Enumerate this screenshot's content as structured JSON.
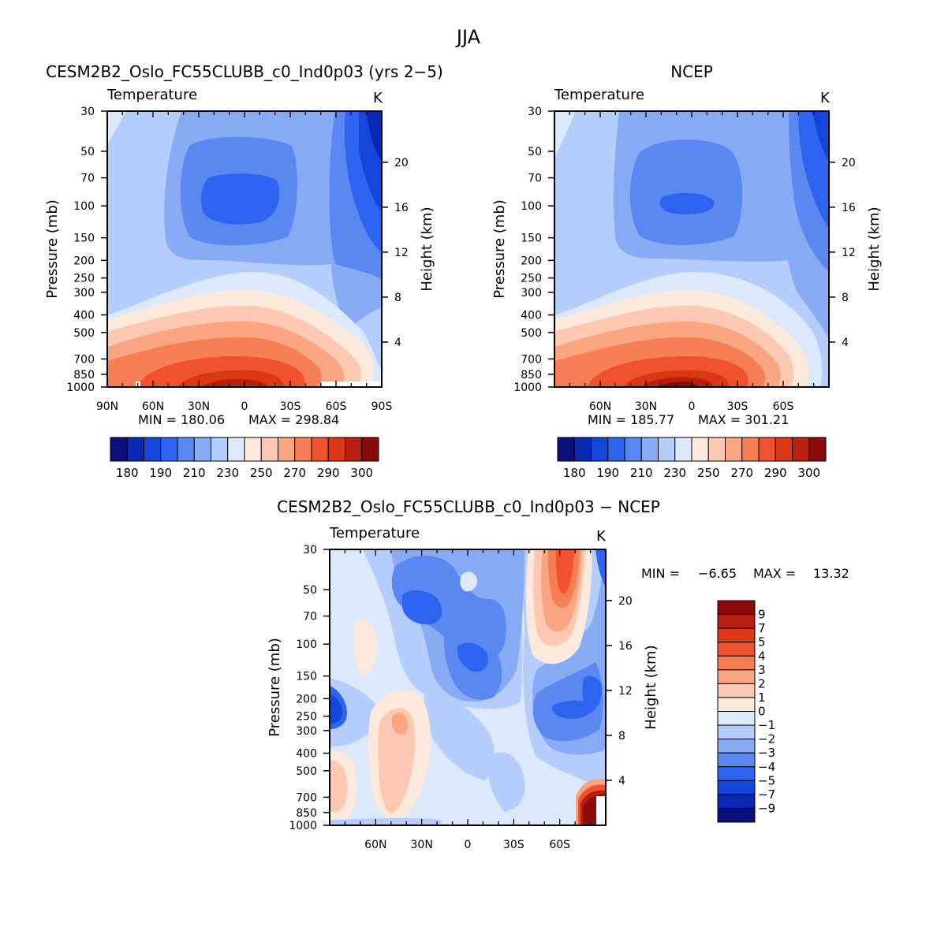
{
  "figure": {
    "title": "JJA"
  },
  "chart_data": [
    {
      "type": "heatmap",
      "panel": "model",
      "title": "CESM2B2_Oslo_FC55CLUBB_c0_Ind0p03 (yrs 2−5)",
      "variable_label": "Temperature",
      "units": "K",
      "ylabel": "Pressure (mb)",
      "y2label": "Height (km)",
      "y_ticks": [
        30,
        50,
        70,
        100,
        150,
        200,
        250,
        300,
        400,
        500,
        700,
        850,
        1000
      ],
      "y_tick_labels": [
        "30",
        "50",
        "70",
        "100",
        "150",
        "200",
        "250",
        "300",
        "400",
        "500",
        "700",
        "850",
        "1000"
      ],
      "x_ticks": [
        90,
        60,
        30,
        0,
        -30,
        -60,
        -90
      ],
      "x_tick_labels": [
        "90N",
        "60N",
        "30N",
        "0",
        "30S",
        "60S",
        "90S"
      ],
      "height_ticks_km": [
        20,
        16,
        12,
        8,
        4
      ],
      "height_tick_labels": [
        "20",
        "16",
        "12",
        "8",
        "4"
      ],
      "xlim": [
        90,
        -90
      ],
      "ylim": [
        1000,
        30
      ],
      "min_label": "MIN = 180.06",
      "max_label": "MAX = 298.84",
      "min": 180.06,
      "max": 298.84
    },
    {
      "type": "heatmap",
      "panel": "obs",
      "title": "NCEP",
      "variable_label": "Temperature",
      "units": "K",
      "ylabel": "Pressure (mb)",
      "y2label": "Height (km)",
      "y_ticks": [
        30,
        50,
        70,
        100,
        150,
        200,
        250,
        300,
        400,
        500,
        700,
        850,
        1000
      ],
      "y_tick_labels": [
        "30",
        "50",
        "70",
        "100",
        "150",
        "200",
        "250",
        "300",
        "400",
        "500",
        "700",
        "850",
        "1000"
      ],
      "x_ticks": [
        60,
        30,
        0,
        -30,
        -60
      ],
      "x_tick_labels": [
        "60N",
        "30N",
        "0",
        "30S",
        "60S"
      ],
      "height_ticks_km": [
        20,
        16,
        12,
        8,
        4
      ],
      "height_tick_labels": [
        "20",
        "16",
        "12",
        "8",
        "4"
      ],
      "xlim": [
        90,
        -90
      ],
      "ylim": [
        1000,
        30
      ],
      "min_label": "MIN = 185.77",
      "max_label": "MAX = 301.21",
      "min": 185.77,
      "max": 301.21
    },
    {
      "type": "heatmap",
      "panel": "difference",
      "title": "CESM2B2_Oslo_FC55CLUBB_c0_Ind0p03 − NCEP",
      "variable_label": "Temperature",
      "units": "K",
      "ylabel": "Pressure (mb)",
      "y2label": "Height (km)",
      "y_ticks": [
        30,
        50,
        70,
        100,
        150,
        200,
        250,
        300,
        400,
        500,
        700,
        850,
        1000
      ],
      "y_tick_labels": [
        "30",
        "50",
        "70",
        "100",
        "150",
        "200",
        "250",
        "300",
        "400",
        "500",
        "700",
        "850",
        "1000"
      ],
      "x_ticks": [
        60,
        30,
        0,
        -30,
        -60
      ],
      "x_tick_labels": [
        "60N",
        "30N",
        "0",
        "30S",
        "60S"
      ],
      "height_ticks_km": [
        20,
        16,
        12,
        8,
        4
      ],
      "height_tick_labels": [
        "20",
        "16",
        "12",
        "8",
        "4"
      ],
      "xlim": [
        90,
        -90
      ],
      "ylim": [
        1000,
        30
      ],
      "min_label": "MIN =",
      "min_value": "−6.65",
      "max_label": "MAX =",
      "max_value": "13.32",
      "min": -6.65,
      "max": 13.32
    }
  ],
  "colorbar_abs": {
    "labels": [
      "180",
      "190",
      "210",
      "230",
      "250",
      "270",
      "290",
      "300"
    ],
    "colors": [
      "#0a0f7a",
      "#0a28b4",
      "#1446dc",
      "#2d64f0",
      "#5a87f0",
      "#87aaf5",
      "#b4cdfa",
      "#dce8fc",
      "#fde8dc",
      "#fbc9b1",
      "#f9a582",
      "#f77d55",
      "#f0522d",
      "#dc3714",
      "#b91e0f",
      "#8c0a0a"
    ]
  },
  "colorbar_diff": {
    "labels": [
      "9",
      "7",
      "5",
      "4",
      "3",
      "2",
      "1",
      "0",
      "−1",
      "−2",
      "−3",
      "−4",
      "−5",
      "−7",
      "−9"
    ],
    "colors": [
      "#8c0a0a",
      "#b91e0f",
      "#dc3714",
      "#f0522d",
      "#f77d55",
      "#f9a582",
      "#fbc9b1",
      "#fde8dc",
      "#dce8fc",
      "#b4cdfa",
      "#87aaf5",
      "#5a87f0",
      "#2d64f0",
      "#1446dc",
      "#0a28b4",
      "#0a0f7a"
    ]
  }
}
